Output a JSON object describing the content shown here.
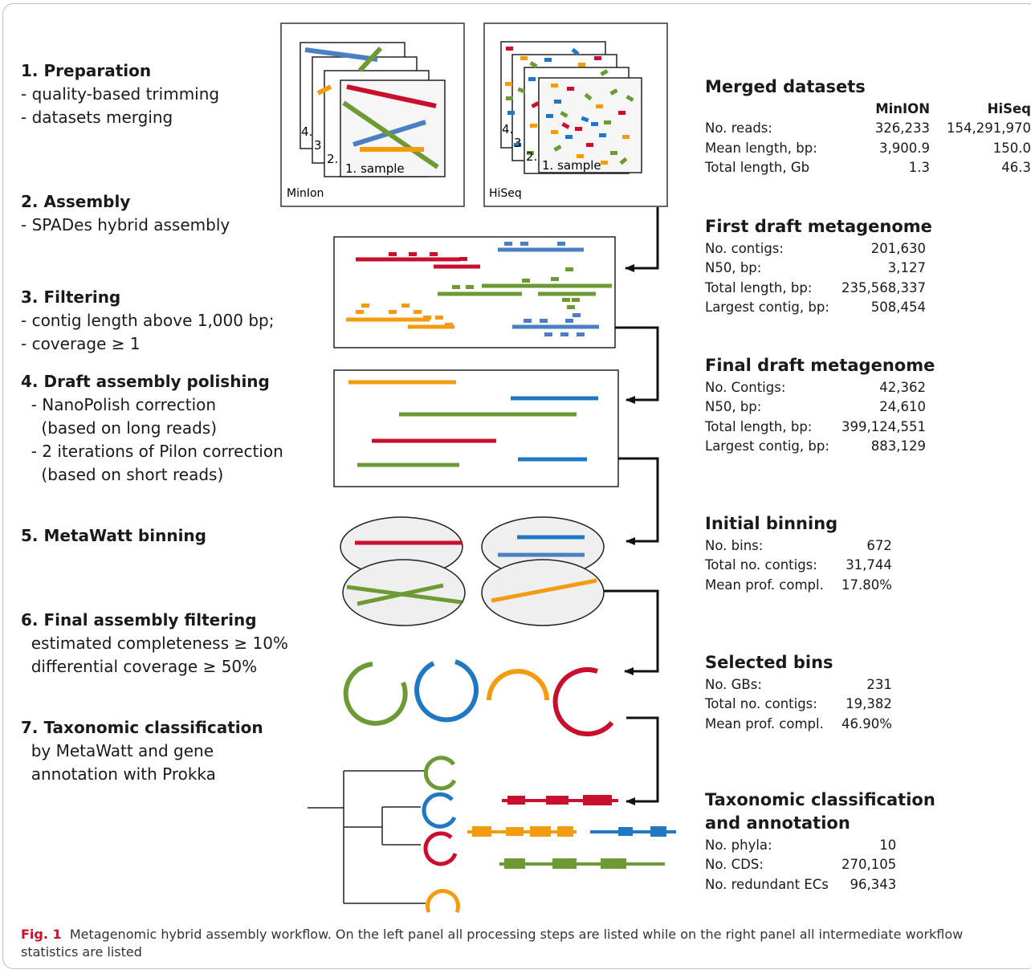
{
  "steps": [
    {
      "title": "1. Preparation",
      "details": [
        "- quality-based trimming",
        "- datasets merging"
      ]
    },
    {
      "title": "2. Assembly",
      "details": [
        "- SPADes hybrid assembly"
      ]
    },
    {
      "title": "3. Filtering",
      "details": [
        "- contig length above 1,000 bp;",
        "- coverage ≥ 1"
      ]
    },
    {
      "title": "4. Draft assembly polishing",
      "details": [
        "  - NanoPolish correction",
        "    (based on long reads)",
        "  - 2 iterations of Pilon correction",
        "    (based on short reads)"
      ]
    },
    {
      "title": "5. MetaWatt binning",
      "details": []
    },
    {
      "title": "6. Final assembly filtering",
      "details": [
        "  estimated completeness ≥ 10%",
        "  differential coverage ≥ 50%"
      ]
    },
    {
      "title": "7. Taxonomic classification",
      "details": [
        "  by MetaWatt and gene",
        "  annotation with Prokka"
      ]
    }
  ],
  "samples": {
    "minion_label": "MinIon",
    "hiseq_label": "HiSeq",
    "sample_label": "1. sample",
    "layer_labels": [
      "2.",
      "3",
      "4."
    ]
  },
  "merged": {
    "title": "Merged datasets",
    "col1": "MinION",
    "col2": "HiSeq",
    "rows": [
      {
        "label": "No. reads:",
        "v1": "326,233",
        "v2": "154,291,970"
      },
      {
        "label": "Mean length, bp:",
        "v1": "3,900.9",
        "v2": "150.0"
      },
      {
        "label": "Total length, Gb",
        "v1": "1.3",
        "v2": "46.3"
      }
    ]
  },
  "first_draft": {
    "title": "First draft metagenome",
    "rows": [
      {
        "label": "No. contigs:",
        "value": "201,630"
      },
      {
        "label": "N50, bp:",
        "value": "3,127"
      },
      {
        "label": "Total length, bp:",
        "value": "235,568,337"
      },
      {
        "label": "Largest contig, bp:",
        "value": "508,454"
      }
    ]
  },
  "final_draft": {
    "title": "Final draft metagenome",
    "rows": [
      {
        "label": "No. Contigs:",
        "value": "42,362"
      },
      {
        "label": "N50, bp:",
        "value": "24,610"
      },
      {
        "label": "Total length, bp:",
        "value": "399,124,551"
      },
      {
        "label": "Largest contig, bp:",
        "value": "883,129"
      }
    ]
  },
  "initial_binning": {
    "title": "Initial binning",
    "rows": [
      {
        "label": "No. bins:",
        "value": "672"
      },
      {
        "label": "Total no. contigs:",
        "value": "31,744"
      },
      {
        "label": "Mean prof. compl.",
        "value": "17.80%"
      }
    ]
  },
  "selected_bins": {
    "title": "Selected bins",
    "rows": [
      {
        "label": "No. GBs:",
        "value": "231"
      },
      {
        "label": "Total no. contigs:",
        "value": "19,382"
      },
      {
        "label": "Mean prof. compl.",
        "value": "46.90%"
      }
    ]
  },
  "taxonomic": {
    "title1": "Taxonomic classification",
    "title2": "and annotation",
    "rows": [
      {
        "label": "No. phyla:",
        "value": "10"
      },
      {
        "label": "No. CDS:",
        "value": "270,105"
      },
      {
        "label": "No. redundant ECs",
        "value": "96,343"
      }
    ]
  },
  "caption": {
    "fig": "Fig. 1",
    "text": "  Metagenomic hybrid assembly workflow. On the left panel all processing steps are listed while on the right panel all intermediate workflow statistics are listed"
  },
  "colors": {
    "red": "#c8102e",
    "blue": "#1f78c1",
    "green": "#6e9a35",
    "orange": "#f39c12",
    "steelblue": "#4a7fc1"
  }
}
